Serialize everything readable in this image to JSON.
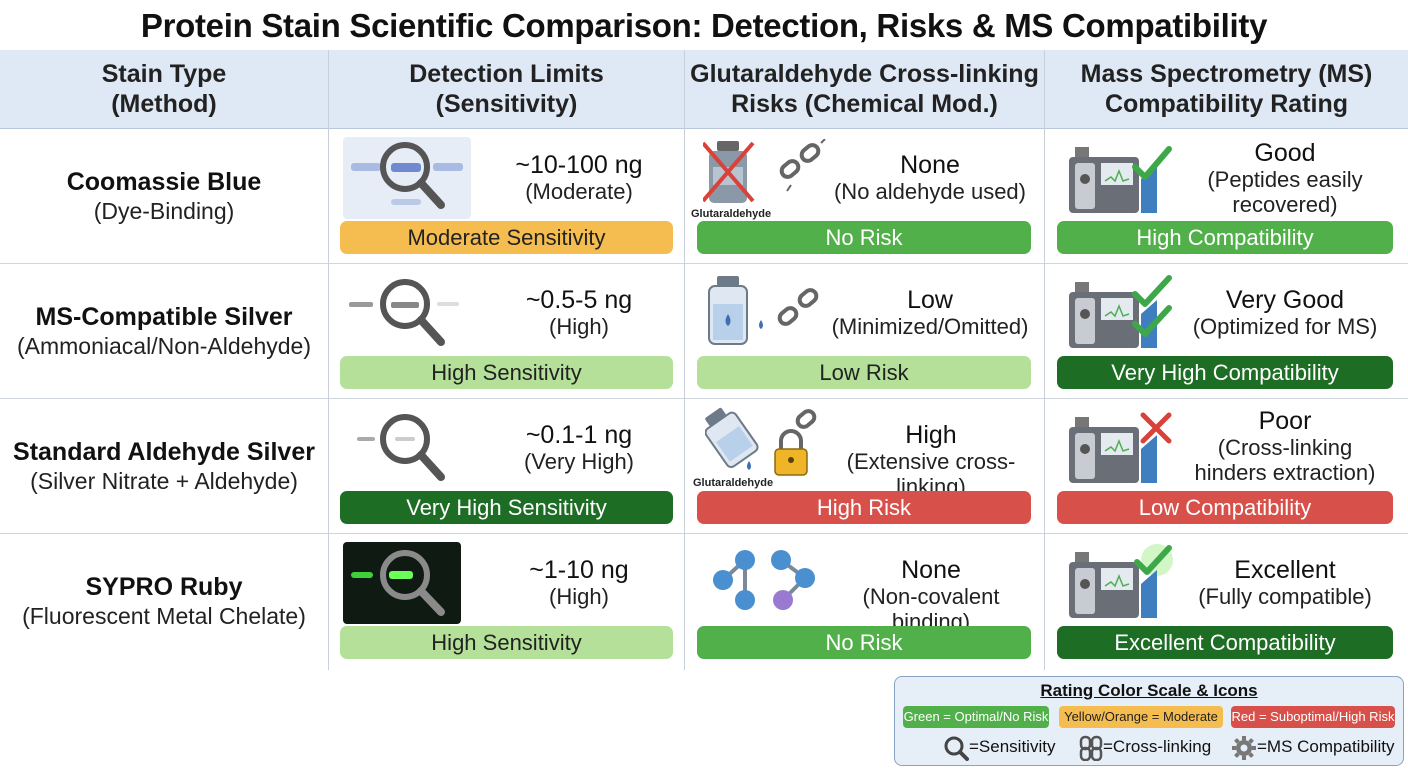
{
  "title": "Protein Stain Scientific Comparison: Detection, Risks & MS Compatibility",
  "headers": [
    {
      "line1": "Stain Type",
      "line2": "(Method)"
    },
    {
      "line1": "Detection Limits",
      "line2": "(Sensitivity)"
    },
    {
      "line1": "Glutaraldehyde Cross-linking",
      "line2": "Risks (Chemical Mod.)"
    },
    {
      "line1": "Mass Spectrometry (MS)",
      "line2": "Compatibility Rating"
    }
  ],
  "rows": [
    {
      "stain": {
        "name": "Coomassie Blue",
        "method": "(Dye-Binding)"
      },
      "detection": {
        "value": "~10-100 ng",
        "sub": "(Moderate)",
        "pill": "Moderate Sensitivity",
        "pill_color": "#f5bd4f"
      },
      "risk": {
        "value": "None",
        "sub": "(No aldehyde used)",
        "pill": "No Risk",
        "pill_color": "#52b04b",
        "icon_label": "Glutaraldehyde"
      },
      "ms": {
        "value": "Good",
        "sub1": "(Peptides easily",
        "sub2": "recovered)",
        "pill": "High Compatibility",
        "pill_color": "#52b04b"
      }
    },
    {
      "stain": {
        "name": "MS-Compatible Silver",
        "method": "(Ammoniacal/Non-Aldehyde)"
      },
      "detection": {
        "value": "~0.5-5 ng",
        "sub": "(High)",
        "pill": "High Sensitivity",
        "pill_color": "#b4e09a"
      },
      "risk": {
        "value": "Low",
        "sub": "(Minimized/Omitted)",
        "pill": "Low Risk",
        "pill_color": "#b4e09a"
      },
      "ms": {
        "value": "Very Good",
        "sub1": "(Optimized for MS)",
        "sub2": "",
        "pill": "Very High Compatibility",
        "pill_color": "#1d6d24"
      }
    },
    {
      "stain": {
        "name": "Standard Aldehyde Silver",
        "method": "(Silver Nitrate + Aldehyde)"
      },
      "detection": {
        "value": "~0.1-1 ng",
        "sub": "(Very High)",
        "pill": "Very High Sensitivity",
        "pill_color": "#1d6d24"
      },
      "risk": {
        "value": "High",
        "sub": "(Extensive cross-linking)",
        "pill": "High Risk",
        "pill_color": "#d8504a",
        "icon_label": "Glutaraldehyde"
      },
      "ms": {
        "value": "Poor",
        "sub1": "(Cross-linking",
        "sub2": "hinders extraction)",
        "pill": "Low Compatibility",
        "pill_color": "#d8504a"
      }
    },
    {
      "stain": {
        "name": "SYPRO Ruby",
        "method": "(Fluorescent Metal Chelate)"
      },
      "detection": {
        "value": "~1-10 ng",
        "sub": "(High)",
        "pill": "High Sensitivity",
        "pill_color": "#b4e09a"
      },
      "risk": {
        "value": "None",
        "sub": "(Non-covalent binding)",
        "pill": "No Risk",
        "pill_color": "#52b04b"
      },
      "ms": {
        "value": "Excellent",
        "sub1": "(Fully compatible)",
        "sub2": "",
        "pill": "Excellent Compatibility",
        "pill_color": "#1d6d24"
      }
    }
  ],
  "legend": {
    "title": "Rating Color Scale & Icons",
    "chips": [
      {
        "label": "Green = Optimal/No Risk",
        "color": "#52b04b"
      },
      {
        "label": "Yellow/Orange = Moderate",
        "color": "#f5bd4f"
      },
      {
        "label": "Red = Suboptimal/High Risk",
        "color": "#d8504a"
      }
    ],
    "icons": [
      {
        "icon": "magnifier-icon",
        "label": "=Sensitivity"
      },
      {
        "icon": "chain-icon",
        "label": "=Cross-linking"
      },
      {
        "icon": "gear-icon",
        "label": "=MS Compatibility"
      }
    ]
  }
}
